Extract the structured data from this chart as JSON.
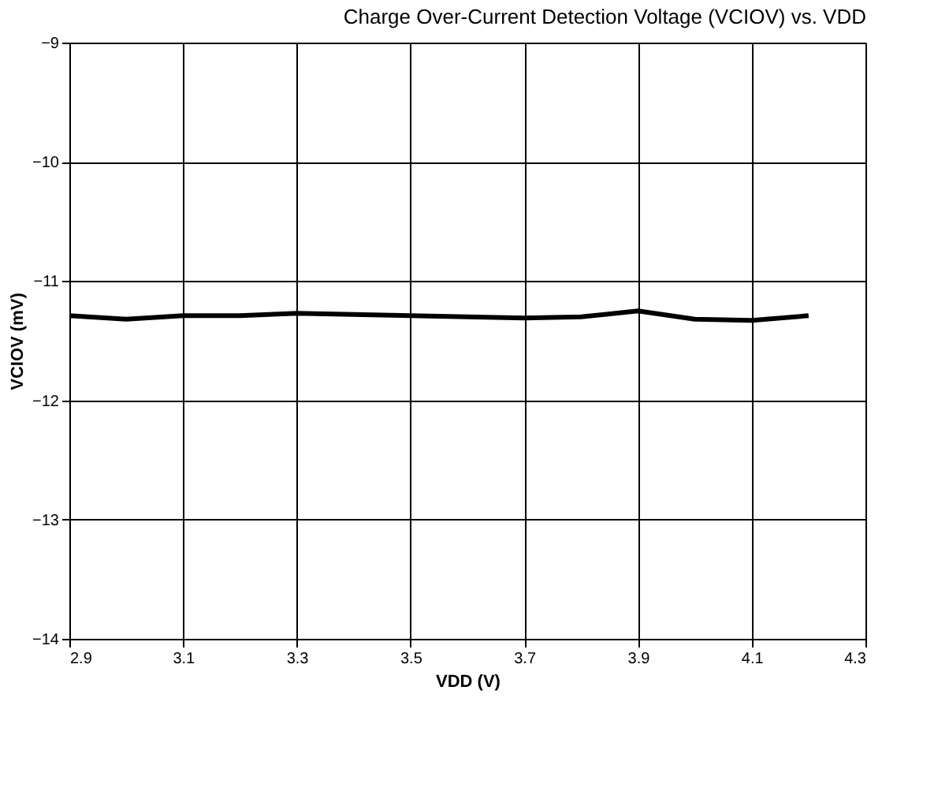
{
  "chart_data": {
    "type": "line",
    "title": "Charge Over-Current Detection Voltage (VCIOV) vs. VDD",
    "xlabel": "VDD (V)",
    "ylabel": "VCIOV (mV)",
    "x": [
      2.9,
      3.0,
      3.1,
      3.2,
      3.3,
      3.4,
      3.5,
      3.6,
      3.7,
      3.8,
      3.9,
      4.0,
      4.1,
      4.2
    ],
    "series": [
      {
        "color": "#000000",
        "values": [
          -11.29,
          -11.32,
          -11.29,
          -11.29,
          -11.27,
          -11.28,
          -11.29,
          -11.3,
          -11.31,
          -11.3,
          -11.25,
          -11.32,
          -11.33,
          -11.29
        ]
      }
    ],
    "xlim": [
      2.9,
      4.3
    ],
    "xticks": [
      2.9,
      3.1,
      3.3,
      3.5,
      3.7,
      3.9,
      4.1,
      4.3
    ],
    "ylim": [
      -14,
      -9
    ],
    "yticks": [
      -14,
      -13,
      -12,
      -11,
      -10,
      -9
    ],
    "grid": true,
    "marker": "none",
    "line_style": "solid"
  }
}
